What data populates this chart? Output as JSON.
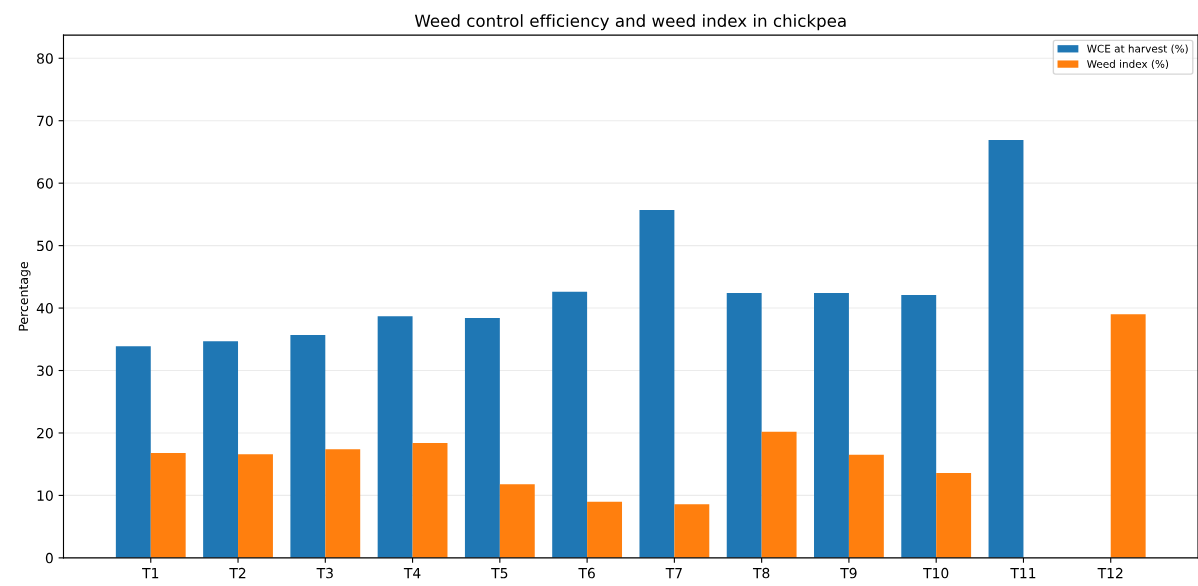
{
  "chart_data": {
    "type": "bar",
    "title": "Weed control efficiency and weed index in chickpea",
    "ylabel": "Percentage",
    "categories": [
      "T1",
      "T2",
      "T3",
      "T4",
      "T5",
      "T6",
      "T7",
      "T8",
      "T9",
      "T10",
      "T11",
      "T12"
    ],
    "series": [
      {
        "name": "WCE at harvest (%)",
        "color": "#1f77b4",
        "values": [
          33.9,
          34.7,
          35.7,
          38.7,
          38.4,
          42.6,
          55.7,
          42.4,
          42.4,
          42.1,
          66.9,
          null
        ]
      },
      {
        "name": "Weed index (%)",
        "color": "#ff7f0e",
        "values": [
          16.8,
          16.6,
          17.4,
          18.4,
          11.8,
          9.0,
          8.6,
          20.2,
          16.5,
          13.6,
          null,
          39.0
        ]
      }
    ],
    "ylim": [
      0,
      83.7
    ],
    "yticks": [
      0,
      10,
      20,
      30,
      40,
      50,
      60,
      70,
      80
    ],
    "grid": "y",
    "legend": "top right"
  }
}
